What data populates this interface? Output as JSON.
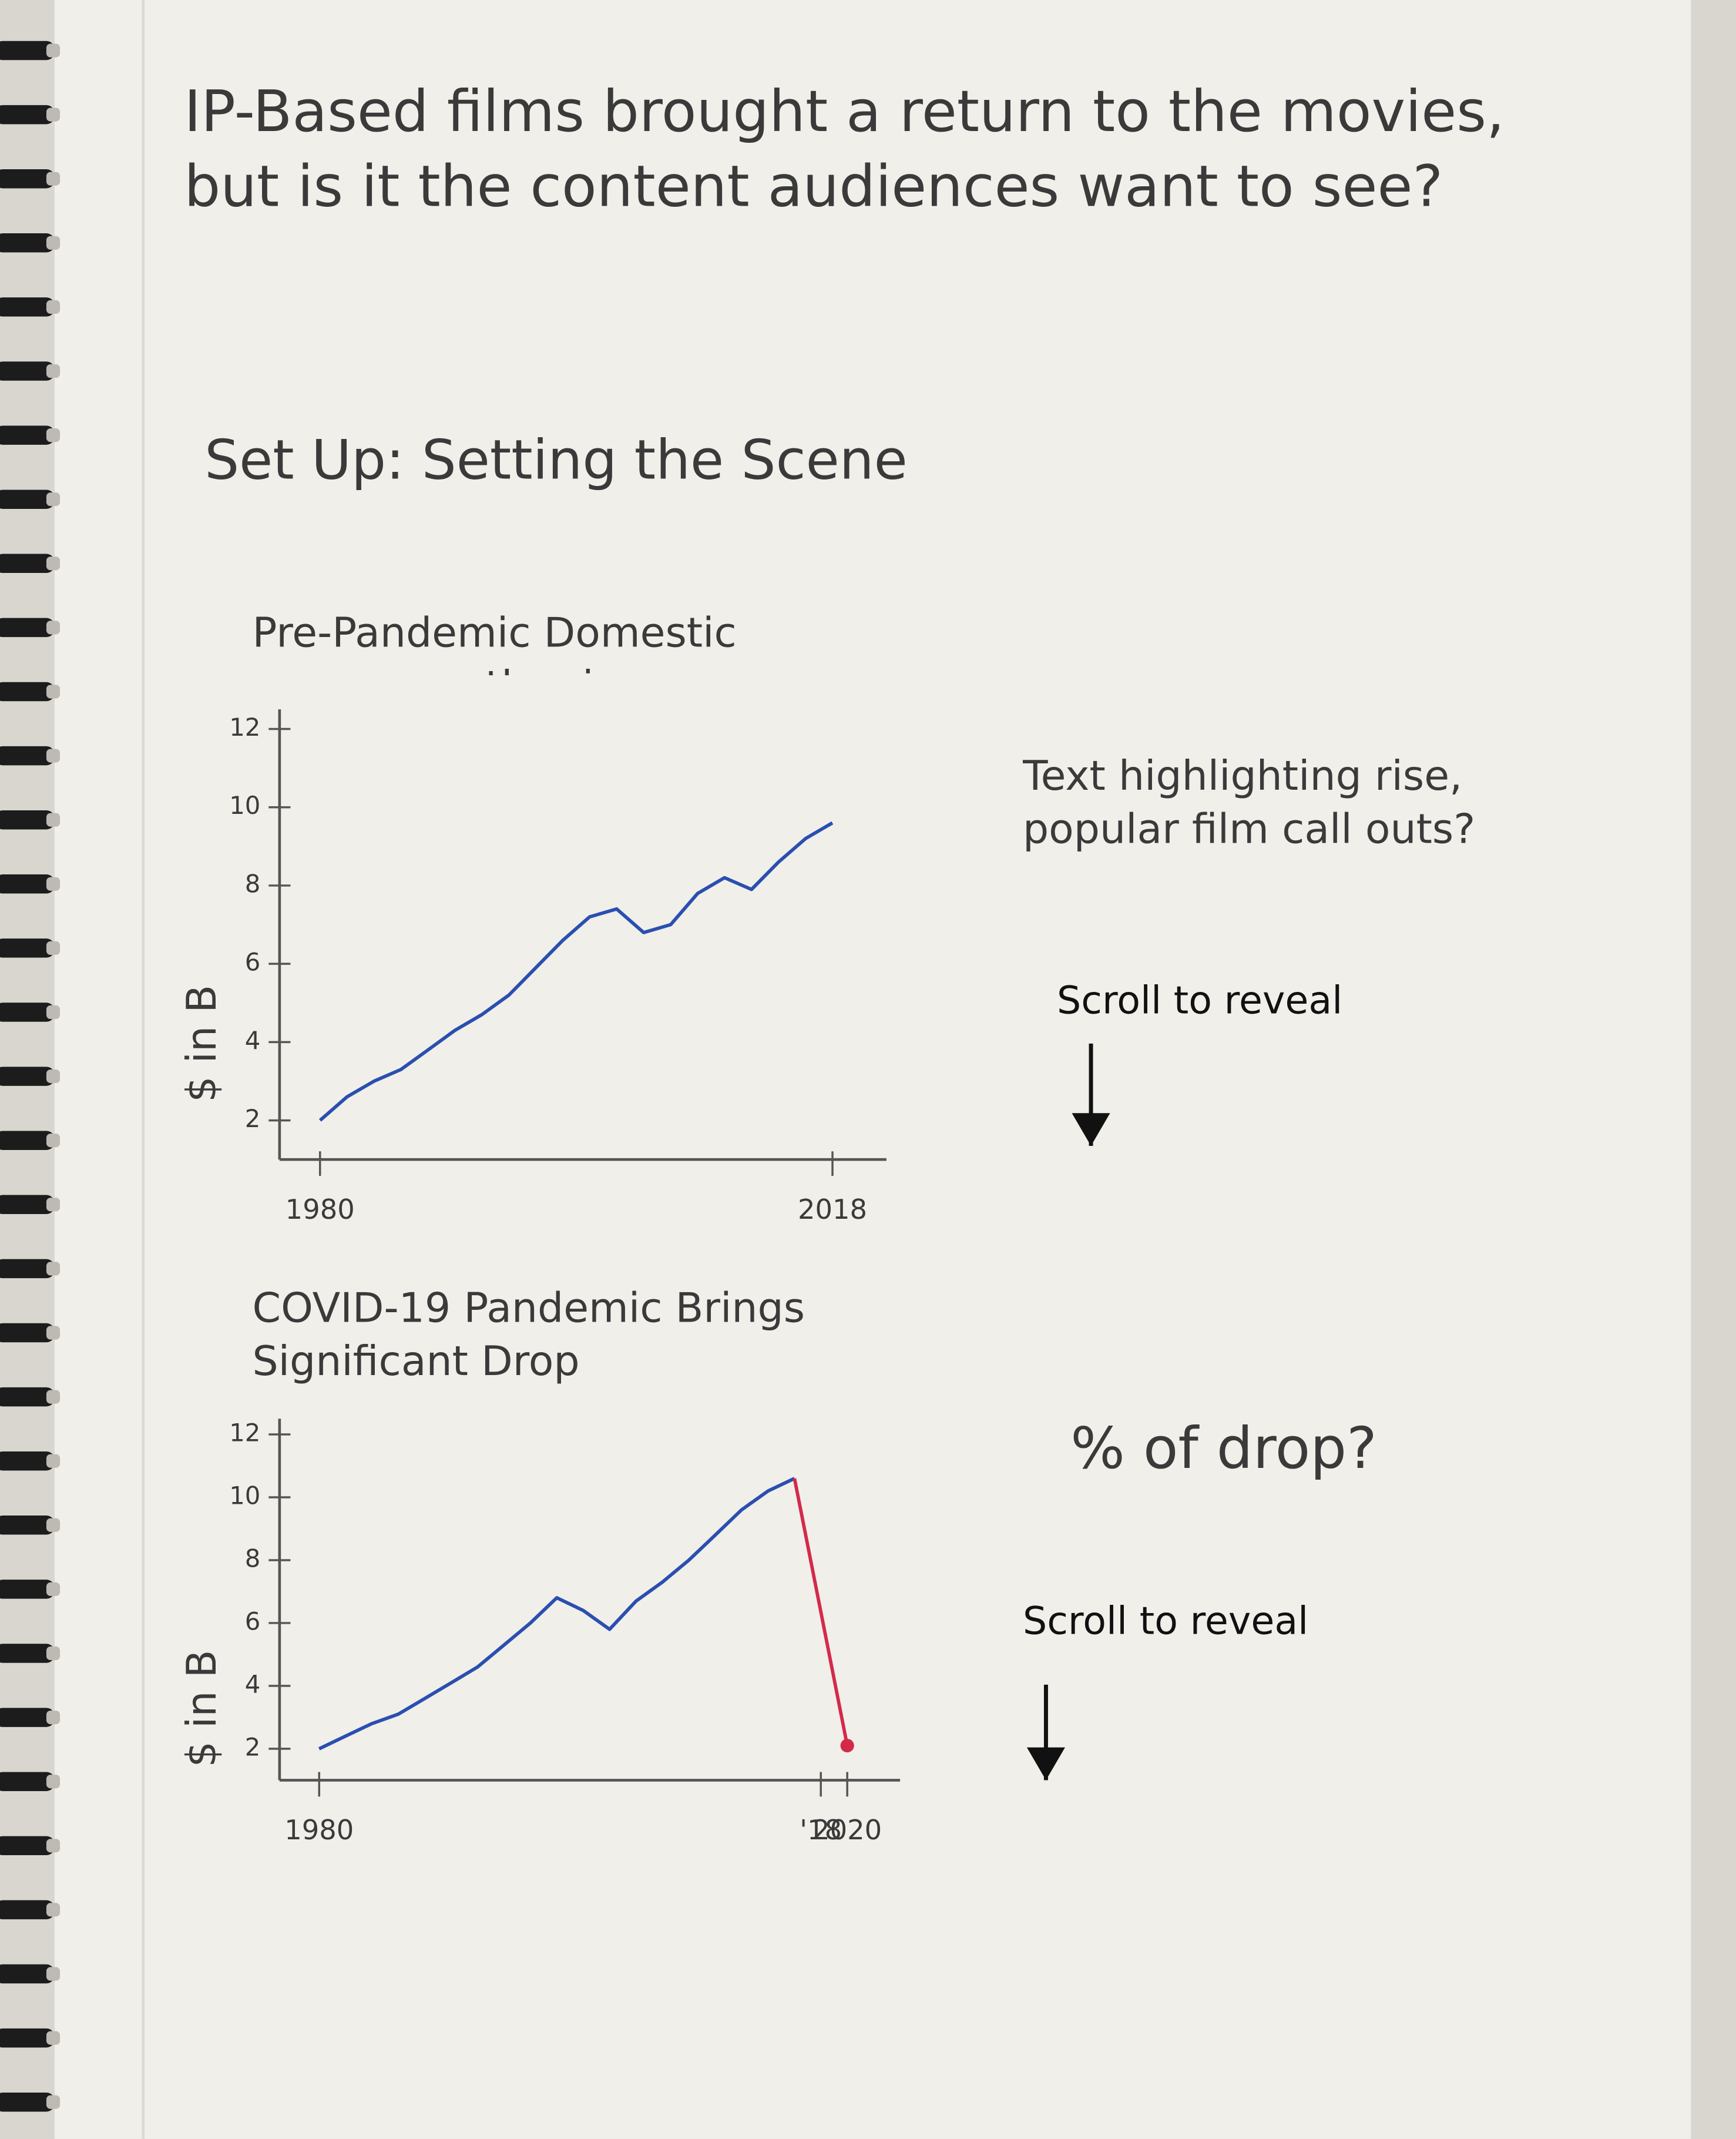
{
  "heading": "IP-Based films brought a return to the movies, but is it the content audiences want to see?",
  "section": "Set Up: Setting the Scene",
  "chart_data": [
    {
      "type": "line",
      "title": "Pre-Pandemic Domestic grosses on the rise",
      "y_label": "$ in B",
      "annotations": [
        "Text highlighting rise, popular film call outs?",
        "Scroll to reveal"
      ],
      "xlim": [
        1977,
        2022
      ],
      "ylim": [
        1,
        12.5
      ],
      "xticks": [
        1980,
        2018
      ],
      "yticks": [
        2,
        4,
        6,
        8,
        10,
        12
      ],
      "series": [
        {
          "color": "#2a4fb0",
          "x": [
            1980,
            1982,
            1984,
            1986,
            1988,
            1990,
            1992,
            1994,
            1996,
            1998,
            2000,
            2002,
            2004,
            2006,
            2008,
            2010,
            2012,
            2014,
            2016,
            2018
          ],
          "values": [
            2.0,
            2.6,
            3.0,
            3.3,
            3.8,
            4.3,
            4.7,
            5.2,
            5.9,
            6.6,
            7.2,
            7.4,
            6.8,
            7.0,
            7.8,
            8.2,
            7.9,
            8.6,
            9.2,
            9.6
          ]
        }
      ]
    },
    {
      "type": "line",
      "title": "COVID-19 Pandemic Brings Significant Drop",
      "y_label": "$ in B",
      "annotations": [
        "% of drop?",
        "Scroll to reveal"
      ],
      "xlim": [
        1977,
        2024
      ],
      "ylim": [
        1,
        12.5
      ],
      "xticks": [
        1980,
        {
          "value": 2018,
          "label": "'18"
        },
        2020
      ],
      "yticks": [
        2,
        4,
        6,
        8,
        10,
        12
      ],
      "series": [
        {
          "color": "#2a4fb0",
          "x": [
            1980,
            1982,
            1984,
            1986,
            1988,
            1990,
            1992,
            1994,
            1996,
            1998,
            2000,
            2002,
            2004,
            2006,
            2008,
            2010,
            2012,
            2014,
            2016
          ],
          "values": [
            2.0,
            2.4,
            2.8,
            3.1,
            3.6,
            4.1,
            4.6,
            5.3,
            6.0,
            6.8,
            6.4,
            5.8,
            6.7,
            7.3,
            8.0,
            8.8,
            9.6,
            10.2,
            10.6
          ]
        },
        {
          "color": "#d42a4a",
          "x": [
            2016,
            2020
          ],
          "values": [
            10.6,
            2.1
          ]
        }
      ]
    }
  ]
}
